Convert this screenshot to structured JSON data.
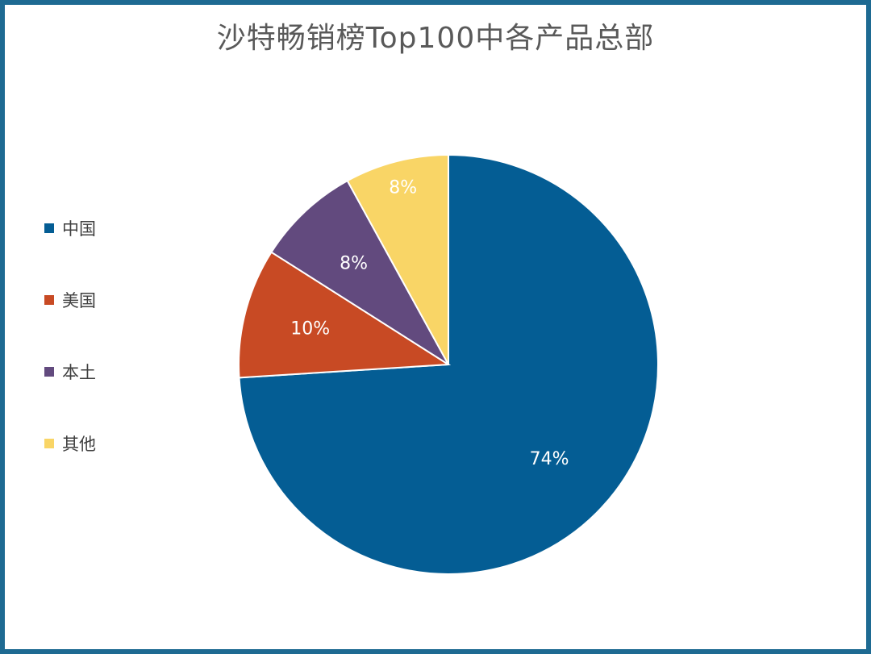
{
  "chart_data": {
    "type": "pie",
    "title": "沙特畅销榜Top100中各产品总部",
    "categories": [
      "中国",
      "美国",
      "本土",
      "其他"
    ],
    "values": [
      74,
      10,
      8,
      8
    ],
    "labels": [
      "74%",
      "10%",
      "8%",
      "8%"
    ],
    "colors": [
      "#045d94",
      "#c84a24",
      "#624a7e",
      "#f9d566"
    ],
    "legend_position": "left"
  }
}
